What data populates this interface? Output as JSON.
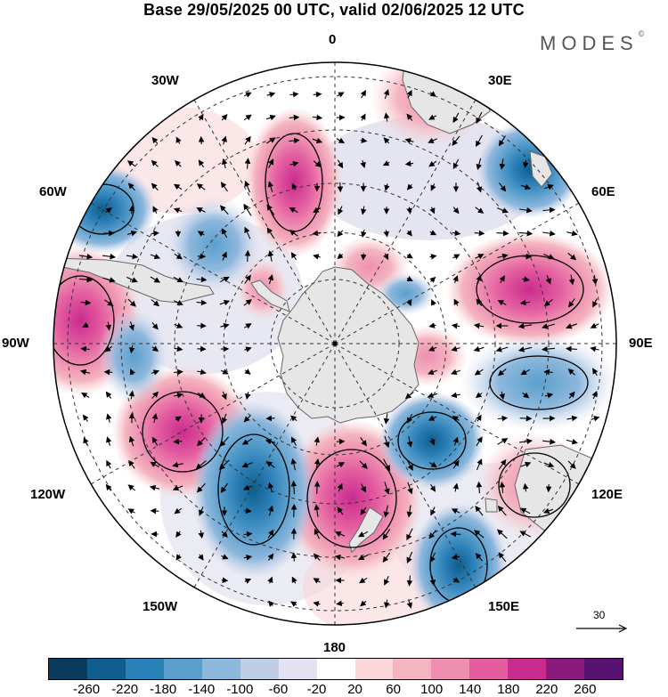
{
  "title": "Base 29/05/2025 00 UTC, valid 02/06/2025 12 UTC",
  "brand": "MODES",
  "brand_mark": "©",
  "map": {
    "projection": "south-polar-stereographic",
    "longitude_labels": {
      "lon0": "0",
      "lon30e": "30E",
      "lon60e": "60E",
      "lon90e": "90E",
      "lon120e": "120E",
      "lon150e": "150E",
      "lon180": "180",
      "lon150w": "150W",
      "lon120w": "120W",
      "lon90w": "90W",
      "lon60w": "60W",
      "lon30w": "30W"
    },
    "anomaly_centers": [
      {
        "name": "positive",
        "lon_label": "30W",
        "value": 140
      },
      {
        "name": "positive",
        "lon_label": "90W",
        "value": 140
      },
      {
        "name": "positive",
        "lon_label": "60E",
        "value": 160
      },
      {
        "name": "negative",
        "lon_label": "135W",
        "value": -200
      },
      {
        "name": "positive",
        "lon_label": "170W",
        "value": 160
      },
      {
        "name": "negative",
        "lon_label": "150E",
        "value": -160
      },
      {
        "name": "positive",
        "lon_label": "120E",
        "value": 120
      },
      {
        "name": "negative",
        "lon_label": "50W",
        "value": -120
      },
      {
        "name": "negative",
        "lon_label": "100E",
        "value": -120
      }
    ]
  },
  "reference_vector": {
    "label": "30"
  },
  "colorbar": {
    "ticks": [
      "-260",
      "-220",
      "-180",
      "-140",
      "-100",
      "-60",
      "-20",
      "20",
      "60",
      "100",
      "140",
      "180",
      "220",
      "260"
    ],
    "colors": [
      "#0b3b5c",
      "#0f5d8c",
      "#2c80b8",
      "#5a9fcc",
      "#8db7dc",
      "#bfcde6",
      "#e2e2f0",
      "#ffffff",
      "#f9d6d8",
      "#f4b4c0",
      "#ee8fb1",
      "#e35ca0",
      "#c92c8d",
      "#8a1a7d",
      "#5a1270"
    ]
  }
}
